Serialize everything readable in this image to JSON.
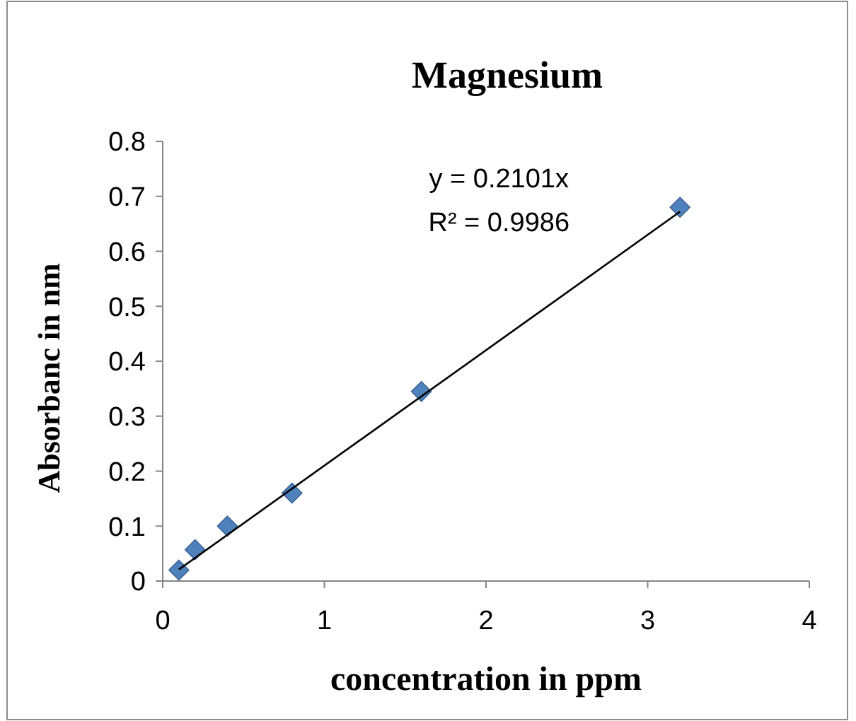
{
  "chart_data": {
    "type": "scatter",
    "title": "Magnesium",
    "xlabel": "concentration in ppm",
    "ylabel": "Absorbanc in nm",
    "xlim": [
      0,
      4
    ],
    "xticks": [
      0,
      1,
      2,
      3,
      4
    ],
    "ylim": [
      0,
      0.8
    ],
    "yticks": [
      0,
      0.1,
      0.2,
      0.3,
      0.4,
      0.5,
      0.6,
      0.7,
      0.8
    ],
    "grid": false,
    "marker": "diamond",
    "annotations": [
      "y = 0.2101x",
      "R² = 0.9986"
    ],
    "series": [
      {
        "color": "#4f81bd",
        "x": [
          0.1,
          0.2,
          0.4,
          0.8,
          1.6,
          3.2
        ],
        "values": [
          0.02,
          0.057,
          0.1,
          0.16,
          0.345,
          0.68
        ]
      },
      {
        "type": "line",
        "color": "#000000",
        "marker": "none",
        "line_style": "solid",
        "x": [
          0.1,
          3.2
        ],
        "values": [
          0.021,
          0.672
        ]
      }
    ]
  }
}
